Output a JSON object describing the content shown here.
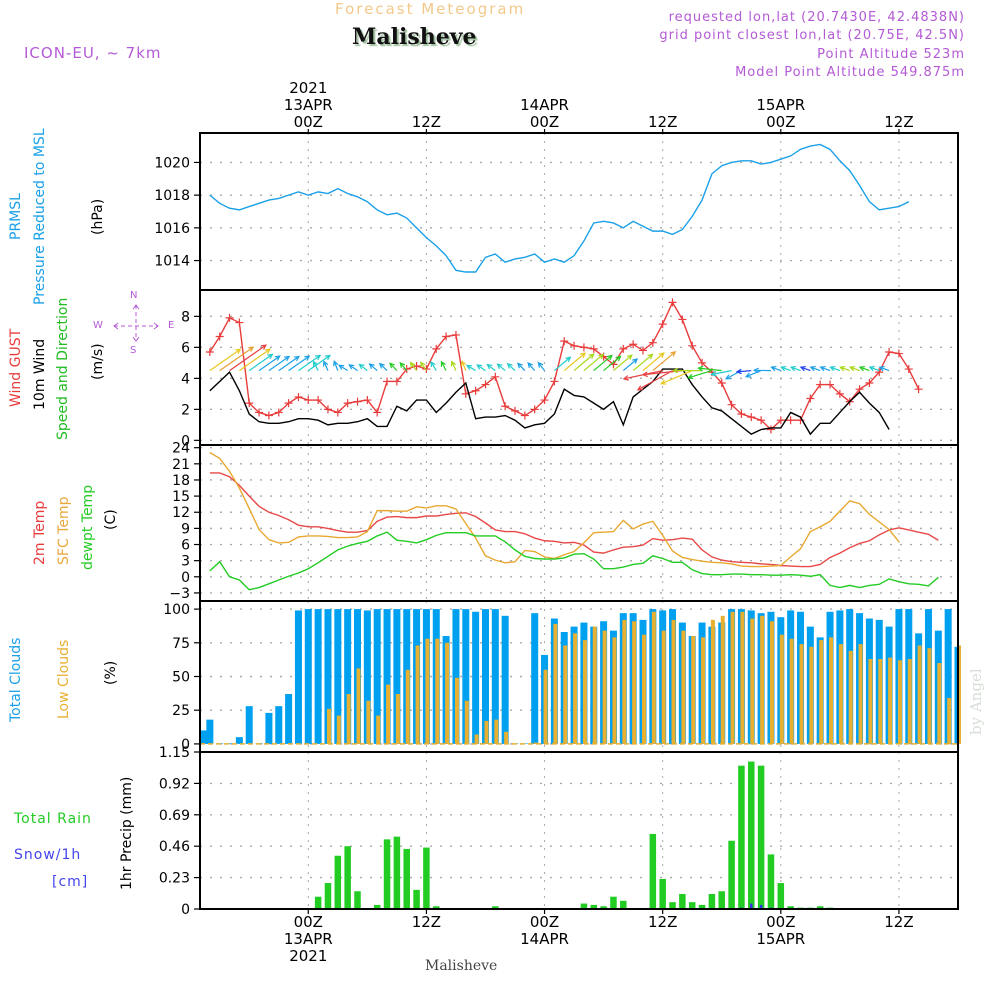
{
  "header": {
    "title": "Forecast Meteogram",
    "location": "Malisheve",
    "model": "ICON-EU, ~ 7km",
    "requested": "requested lon,lat (20.7430E, 42.4838N)",
    "grid_point": "grid point closest lon,lat (20.75E, 42.5N)",
    "point_altitude": "Point Altitude 523m",
    "model_altitude": "Model Point Altitude 549.875m"
  },
  "footer": {
    "location": "Malisheve"
  },
  "watermark": "by Angel",
  "time_axis": {
    "top_labels": [
      {
        "lines": [
          "2021",
          "13APR",
          "00Z"
        ]
      },
      {
        "lines": [
          "12Z"
        ]
      },
      {
        "lines": [
          "14APR",
          "00Z"
        ]
      },
      {
        "lines": [
          "12Z"
        ]
      },
      {
        "lines": [
          "15APR",
          "00Z"
        ]
      },
      {
        "lines": [
          "12Z"
        ]
      }
    ],
    "bottom_labels": [
      {
        "lines": [
          "00Z",
          "13APR",
          "2021"
        ]
      },
      {
        "lines": [
          "12Z"
        ]
      },
      {
        "lines": [
          "00Z",
          "14APR"
        ]
      },
      {
        "lines": [
          "12Z"
        ]
      },
      {
        "lines": [
          "00Z",
          "15APR"
        ]
      },
      {
        "lines": [
          "12Z"
        ]
      }
    ],
    "start_hour": -11,
    "end_hour": 66,
    "tick_hours": [
      0,
      12,
      24,
      36,
      48,
      60
    ]
  },
  "panel_labels": {
    "pressure": {
      "lines": [
        {
          "text": "PRMSL",
          "color": "#1aa0e8"
        },
        {
          "text": "Pressure Reduced to MSL",
          "color": "#1aa0e8"
        },
        {
          "text": "(hPa)",
          "color": "#000000"
        }
      ]
    },
    "wind": {
      "lines": [
        {
          "text": "Wind GUST",
          "color": "#e83c3c"
        },
        {
          "text": "10m Wind",
          "color": "#000000"
        },
        {
          "text": "Speed and Direction",
          "color": "#22bb22"
        },
        {
          "text": "(m/s)",
          "color": "#000000"
        }
      ],
      "compass": {
        "n": "N",
        "s": "S",
        "w": "W",
        "e": "E"
      }
    },
    "temp": {
      "lines": [
        {
          "text": "2m Temp",
          "color": "#e83c3c"
        },
        {
          "text": "SFC Temp",
          "color": "#e8a83c"
        },
        {
          "text": "dewpt Temp",
          "color": "#22cc22"
        },
        {
          "text": "(C)",
          "color": "#000000"
        }
      ]
    },
    "clouds": {
      "lines": [
        {
          "text": "Total Clouds",
          "color": "#1aa0e8"
        },
        {
          "text": "Low Clouds",
          "color": "#e8b030"
        },
        {
          "text": "(%)",
          "color": "#000000"
        }
      ]
    },
    "precip": {
      "total_rain": "Total  Rain",
      "snow": "Snow/1h",
      "snow_unit": "[cm]",
      "axis": "1hr Precip (mm)"
    }
  },
  "colors": {
    "pressure": "#1aa0e8",
    "gust": "#e83c3c",
    "wind10m": "#000000",
    "t2m": "#e84848",
    "tsfc": "#e8a830",
    "dewpt": "#22cc22",
    "total_clouds": "#00a0f0",
    "low_clouds": "#e8b030",
    "rain": "#22cc22",
    "snow": "#3333ee"
  },
  "chart_data": [
    {
      "type": "line",
      "name": "pressure",
      "title": "PRMSL Pressure Reduced to MSL",
      "ylabel": "(hPa)",
      "ylim": [
        1012.2,
        1021.8
      ],
      "yticks": [
        1014,
        1016,
        1018,
        1020
      ],
      "grid": true,
      "x_hours_start": -10,
      "x_hours_step": 1,
      "series": [
        {
          "name": "PRMSL",
          "values": [
            1018.0,
            1017.5,
            1017.2,
            1017.1,
            1017.3,
            1017.5,
            1017.7,
            1017.8,
            1018.0,
            1018.2,
            1018.0,
            1018.2,
            1018.1,
            1018.4,
            1018.1,
            1017.9,
            1017.6,
            1017.1,
            1016.8,
            1016.9,
            1016.6,
            1016.0,
            1015.4,
            1014.9,
            1014.3,
            1013.4,
            1013.3,
            1013.3,
            1014.2,
            1014.4,
            1013.9,
            1014.1,
            1014.2,
            1014.4,
            1013.9,
            1014.1,
            1013.9,
            1014.3,
            1015.2,
            1016.3,
            1016.4,
            1016.3,
            1016.0,
            1016.4,
            1016.1,
            1015.8,
            1015.8,
            1015.6,
            1015.9,
            1016.7,
            1017.7,
            1019.3,
            1019.8,
            1020.0,
            1020.1,
            1020.1,
            1019.9,
            1020.0,
            1020.2,
            1020.4,
            1020.8,
            1021.0,
            1021.1,
            1020.8,
            1020.1,
            1019.5,
            1018.6,
            1017.6,
            1017.1,
            1017.2,
            1017.3,
            1017.6
          ]
        }
      ]
    },
    {
      "type": "line",
      "name": "wind",
      "title": "Wind GUST / 10m Wind Speed and Direction",
      "ylabel": "(m/s)",
      "ylim": [
        -0.3,
        9.7
      ],
      "yticks": [
        0,
        2,
        4,
        6,
        8
      ],
      "grid": true,
      "x_hours_start": -10,
      "x_hours_step": 1,
      "series": [
        {
          "name": "Wind GUST",
          "values": [
            5.7,
            6.7,
            7.9,
            7.6,
            2.4,
            1.8,
            1.6,
            1.8,
            2.4,
            2.8,
            2.6,
            2.6,
            2.0,
            1.8,
            2.4,
            2.5,
            2.6,
            1.8,
            3.8,
            3.8,
            4.6,
            4.8,
            4.6,
            5.9,
            6.7,
            6.8,
            3.0,
            3.2,
            3.6,
            4.1,
            2.2,
            1.9,
            1.6,
            2.0,
            2.6,
            3.8,
            6.4,
            6.1,
            6.0,
            5.9,
            5.4,
            4.9,
            5.9,
            6.2,
            5.8,
            6.3,
            7.5,
            8.9,
            7.8,
            6.1,
            5.0,
            4.4,
            3.7,
            2.3,
            1.7,
            1.5,
            1.3,
            0.7,
            1.3,
            1.3,
            1.3,
            2.7,
            3.6,
            3.6,
            3.0,
            2.5,
            3.3,
            3.7,
            4.4,
            5.7,
            5.6,
            4.6,
            3.3
          ]
        },
        {
          "name": "10m Wind",
          "values": [
            3.2,
            3.8,
            4.4,
            3.2,
            1.7,
            1.2,
            1.1,
            1.1,
            1.2,
            1.4,
            1.4,
            1.3,
            1.0,
            1.1,
            1.1,
            1.2,
            1.4,
            0.9,
            0.9,
            2.2,
            1.9,
            2.6,
            2.6,
            1.8,
            2.4,
            3.1,
            3.7,
            1.4,
            1.5,
            1.5,
            1.6,
            1.3,
            0.8,
            1.0,
            1.1,
            1.7,
            3.3,
            2.9,
            2.8,
            2.4,
            2.0,
            2.5,
            1.0,
            2.8,
            3.3,
            3.8,
            4.6,
            4.6,
            4.6,
            3.6,
            2.8,
            2.1,
            1.9,
            1.4,
            0.9,
            0.4,
            0.7,
            0.8,
            0.8,
            1.8,
            1.5,
            0.4,
            1.1,
            1.1,
            1.8,
            2.5,
            3.1,
            2.4,
            1.8,
            0.7
          ]
        }
      ],
      "wind_arrows_note": "direction arrows plotted along ~4.5 m/s line, colored by speed"
    },
    {
      "type": "line",
      "name": "temperature",
      "title": "2m Temp / SFC Temp / dewpt Temp",
      "ylabel": "(C)",
      "ylim": [
        -4.5,
        24.5
      ],
      "yticks": [
        -3,
        0,
        3,
        6,
        9,
        12,
        15,
        18,
        21,
        24
      ],
      "grid": true,
      "x_hours_start": -10,
      "x_hours_step": 1,
      "series": [
        {
          "name": "2m Temp",
          "values": [
            19.3,
            19.3,
            18.6,
            17.0,
            15.0,
            13.1,
            12.0,
            11.4,
            10.6,
            9.6,
            9.3,
            9.3,
            9.0,
            8.6,
            8.3,
            8.3,
            8.6,
            10.3,
            11.1,
            11.2,
            11.0,
            11.0,
            11.3,
            11.3,
            11.6,
            11.8,
            11.9,
            11.2,
            10.0,
            8.7,
            8.4,
            8.4,
            8.0,
            7.2,
            6.7,
            6.6,
            6.3,
            6.4,
            5.9,
            4.6,
            4.4,
            5.0,
            5.5,
            5.6,
            5.9,
            7.1,
            6.8,
            6.9,
            7.2,
            7.0,
            5.0,
            3.7,
            3.1,
            2.8,
            2.7,
            2.6,
            2.4,
            2.3,
            2.1,
            2.0,
            1.9,
            1.9,
            2.3,
            3.6,
            4.4,
            5.4,
            6.2,
            6.7,
            7.8,
            8.7,
            9.1,
            8.7,
            8.3,
            7.9,
            6.8
          ]
        },
        {
          "name": "SFC Temp",
          "values": [
            23.1,
            22.0,
            19.6,
            16.5,
            12.7,
            8.8,
            6.9,
            6.3,
            6.4,
            7.4,
            7.6,
            7.6,
            7.5,
            7.3,
            7.3,
            7.4,
            8.4,
            12.3,
            12.3,
            12.2,
            12.2,
            13.0,
            12.8,
            13.2,
            13.2,
            12.6,
            9.9,
            7.2,
            3.9,
            3.1,
            2.6,
            2.8,
            4.9,
            4.7,
            3.7,
            3.4,
            4.1,
            4.7,
            6.3,
            8.2,
            8.3,
            8.4,
            10.5,
            8.9,
            9.8,
            10.3,
            7.7,
            4.8,
            3.6,
            3.2,
            2.9,
            2.7,
            2.6,
            2.4,
            2.0,
            1.9,
            1.9,
            2.0,
            2.1,
            3.7,
            5.2,
            8.4,
            9.3,
            10.3,
            12.2,
            14.1,
            13.6,
            11.6,
            10.2,
            8.8,
            6.5
          ]
        },
        {
          "name": "dewpt Temp",
          "values": [
            1.1,
            2.8,
            0.0,
            -0.6,
            -2.4,
            -2.0,
            -1.3,
            -0.6,
            0.1,
            0.7,
            1.5,
            2.6,
            3.8,
            5.0,
            5.7,
            6.2,
            6.6,
            7.6,
            8.3,
            6.8,
            6.6,
            6.3,
            6.9,
            7.7,
            8.2,
            8.2,
            8.2,
            7.6,
            7.6,
            7.6,
            6.5,
            5.0,
            3.8,
            3.4,
            3.3,
            3.3,
            3.5,
            4.2,
            4.3,
            3.3,
            1.5,
            1.5,
            1.8,
            2.3,
            2.5,
            3.9,
            3.4,
            2.7,
            2.7,
            1.3,
            0.6,
            0.4,
            0.4,
            0.5,
            0.5,
            0.4,
            0.4,
            0.3,
            0.3,
            0.4,
            0.3,
            0.1,
            0.4,
            -1.6,
            -2.0,
            -1.6,
            -2.0,
            -1.6,
            -1.4,
            -0.4,
            -0.9,
            -1.3,
            -1.4,
            -1.7,
            -0.1
          ]
        }
      ]
    },
    {
      "type": "bar",
      "name": "clouds",
      "title": "Total Clouds / Low Clouds",
      "ylabel": "(%)",
      "ylim": [
        -6,
        106
      ],
      "yticks": [
        0,
        25,
        50,
        75,
        100
      ],
      "grid": true,
      "x_hours_start": -11,
      "x_hours_step": 1,
      "series": [
        {
          "name": "Total Clouds",
          "values": [
            10,
            18,
            0,
            0,
            5,
            28,
            0,
            23,
            28,
            37,
            99,
            100,
            100,
            100,
            100,
            100,
            100,
            99,
            100,
            100,
            100,
            100,
            100,
            100,
            100,
            80,
            100,
            100,
            98,
            100,
            100,
            95,
            0,
            0,
            97,
            66,
            93,
            83,
            87,
            90,
            87,
            91,
            84,
            97,
            97,
            92,
            100,
            99,
            100,
            90,
            80,
            90,
            87,
            90,
            100,
            100,
            99,
            97,
            98,
            94,
            99,
            98,
            87,
            79,
            98,
            99,
            100,
            97,
            93,
            92,
            87,
            100,
            100,
            82,
            100,
            84,
            100,
            72,
            83,
            82,
            67,
            72,
            95,
            88,
            93,
            73,
            76
          ]
        },
        {
          "name": "Low Clouds",
          "values": [
            0,
            0,
            0,
            0,
            0,
            0,
            0,
            0,
            0,
            0,
            0,
            0,
            0,
            26,
            21,
            37,
            56,
            32,
            21,
            44,
            37,
            55,
            73,
            78,
            78,
            75,
            49,
            32,
            7,
            17,
            18,
            9,
            0,
            0,
            1,
            55,
            89,
            73,
            82,
            77,
            87,
            84,
            79,
            92,
            91,
            81,
            98,
            84,
            92,
            84,
            80,
            79,
            92,
            95,
            98,
            98,
            93,
            95,
            91,
            81,
            78,
            74,
            72,
            77,
            79,
            74,
            69,
            74,
            63,
            63,
            64,
            62,
            63,
            73,
            71,
            60,
            34,
            73,
            45,
            57,
            68,
            80,
            56,
            62,
            64
          ]
        }
      ]
    },
    {
      "type": "bar",
      "name": "precipitation",
      "title": "Total Rain / Snow per 1h",
      "ylabel": "1hr Precip (mm)",
      "ylim": [
        0,
        1.15
      ],
      "yticks": [
        0,
        0.23,
        0.46,
        0.69,
        0.92,
        1.15
      ],
      "ytick_labels": [
        "0",
        "0.23",
        "0.46",
        "0.69",
        "0.92",
        "1.15"
      ],
      "grid": true,
      "x_hours_start": -11,
      "x_hours_step": 1,
      "series": [
        {
          "name": "Total Rain",
          "values": [
            0,
            0,
            0,
            0,
            0,
            0,
            0,
            0,
            0,
            0,
            0,
            0,
            0.09,
            0.19,
            0.39,
            0.46,
            0.13,
            0,
            0.03,
            0.51,
            0.53,
            0.44,
            0.14,
            0.45,
            0.02,
            0,
            0,
            0,
            0,
            0,
            0.02,
            0,
            0,
            0,
            0,
            0,
            0,
            0,
            0,
            0.04,
            0.03,
            0.02,
            0.09,
            0.06,
            0,
            0,
            0.55,
            0.22,
            0.05,
            0.11,
            0.05,
            0.03,
            0.11,
            0.13,
            0.5,
            1.05,
            1.08,
            1.05,
            0.4,
            0.19,
            0.02,
            0.01,
            0.01,
            0.02,
            0.01,
            0,
            0,
            0,
            0,
            0,
            0,
            0,
            0,
            0,
            0,
            0,
            0
          ]
        },
        {
          "name": "Snow/1h",
          "values": [
            0,
            0,
            0,
            0,
            0,
            0,
            0,
            0,
            0,
            0,
            0,
            0,
            0,
            0,
            0,
            0,
            0,
            0,
            0,
            0,
            0,
            0,
            0,
            0,
            0,
            0,
            0,
            0,
            0,
            0,
            0,
            0,
            0,
            0,
            0,
            0,
            0,
            0,
            0,
            0,
            0,
            0,
            0,
            0,
            0,
            0,
            0,
            0,
            0,
            0,
            0,
            0,
            0,
            0,
            0,
            0.01,
            0.04,
            0.03,
            0.01,
            0,
            0,
            0,
            0,
            0,
            0,
            0,
            0,
            0,
            0,
            0,
            0,
            0,
            0,
            0,
            0,
            0,
            0
          ]
        }
      ]
    }
  ]
}
